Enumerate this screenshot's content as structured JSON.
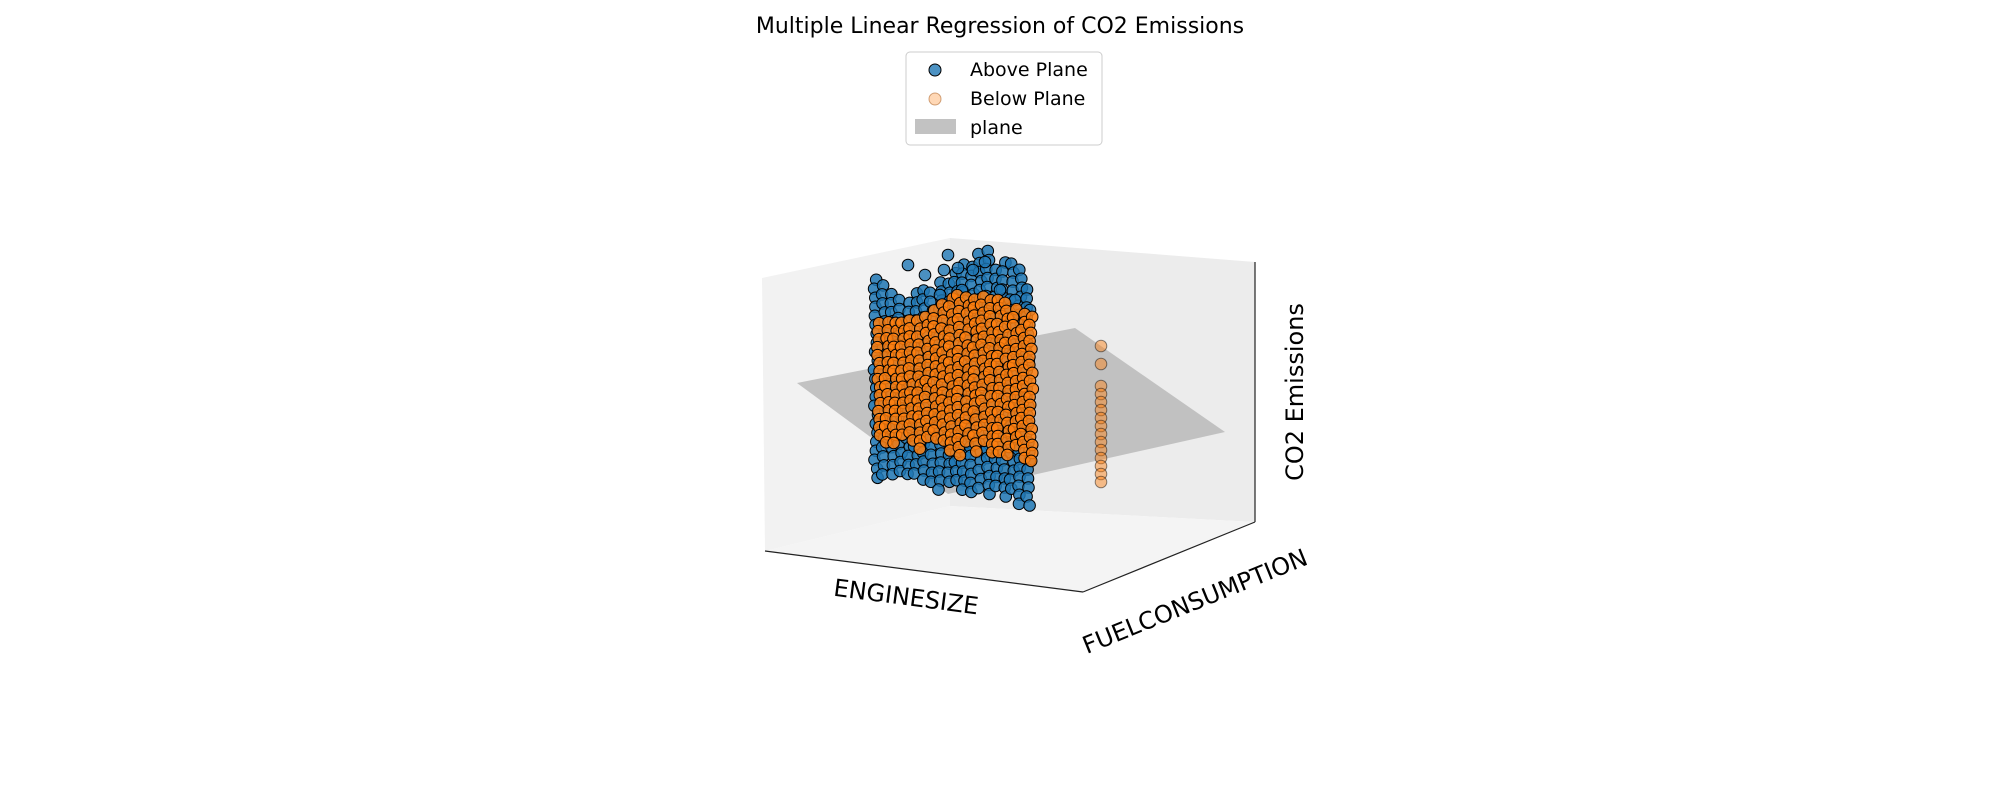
{
  "chart_data": {
    "type": "scatter",
    "projection": "3d",
    "title": "Multiple Linear Regression of CO2 Emissions",
    "xlabel": "ENGINESIZE",
    "ylabel": "FUELCONSUMPTION",
    "zlabel": "CO2 Emissions",
    "grid": false,
    "legend_position": "top-center",
    "legend": [
      {
        "label": "Above Plane",
        "kind": "marker",
        "color": "#1f77b4"
      },
      {
        "label": "Below Plane",
        "kind": "marker",
        "color": "#ff7f0e"
      },
      {
        "label": "plane",
        "kind": "patch",
        "color": "#c2c2c2"
      }
    ],
    "series": [
      {
        "name": "Above Plane",
        "color": "#1f77b4"
      },
      {
        "name": "Below Plane",
        "color": "#ff7f0e"
      }
    ],
    "plane": {
      "name": "plane",
      "color": "#bdbdbd"
    }
  }
}
